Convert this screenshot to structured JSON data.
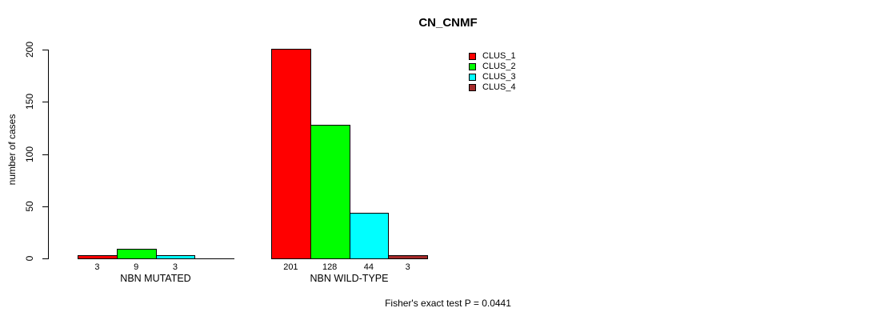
{
  "chart_data": {
    "type": "bar",
    "title": "CN_CNMF",
    "ylabel": "number of cases",
    "xlabel": "",
    "ylim": [
      0,
      200
    ],
    "yticks": [
      0,
      50,
      100,
      150,
      200
    ],
    "grid": false,
    "legend_position": "top-right",
    "categories": [
      "NBN MUTATED",
      "NBN WILD-TYPE"
    ],
    "series": [
      {
        "name": "CLUS_1",
        "color": "#ff0000",
        "values": [
          3,
          201
        ]
      },
      {
        "name": "CLUS_2",
        "color": "#00ff00",
        "values": [
          9,
          128
        ]
      },
      {
        "name": "CLUS_3",
        "color": "#00ffff",
        "values": [
          3,
          44
        ]
      },
      {
        "name": "CLUS_4",
        "color": "#a52a2a",
        "values": [
          0,
          3
        ]
      }
    ],
    "bar_labels": [
      [
        "3",
        "9",
        "3",
        ""
      ],
      [
        "201",
        "128",
        "44",
        "3"
      ]
    ],
    "annotation": "Fisher's exact test P = 0.0441"
  }
}
